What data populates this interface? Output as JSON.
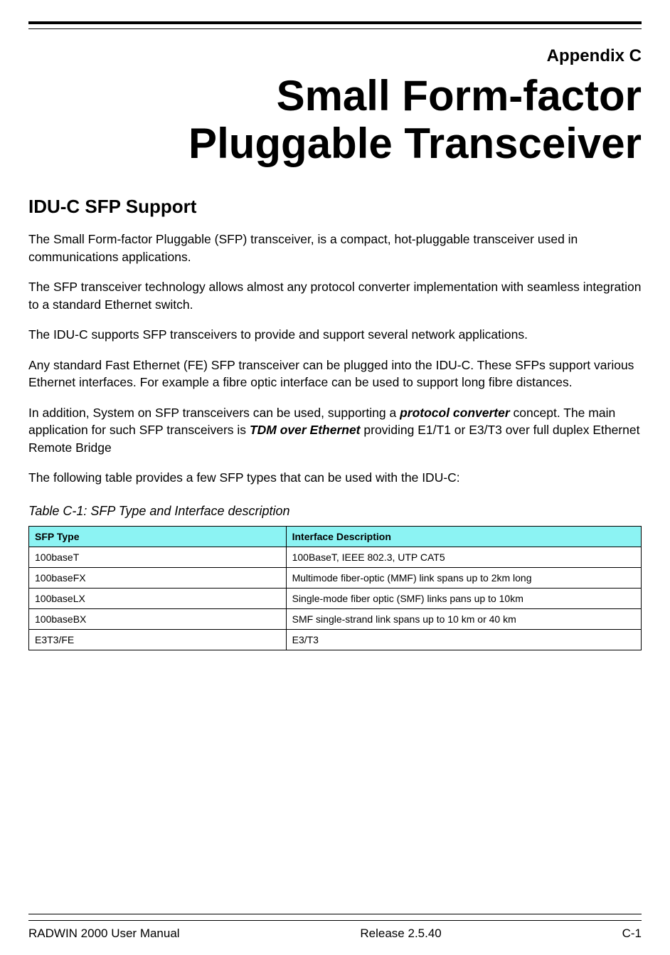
{
  "header": {
    "appendix_label": "Appendix C",
    "title_line1": "Small Form-factor",
    "title_line2": "Pluggable Transceiver"
  },
  "section": {
    "heading": "IDU-C SFP Support",
    "p1": "The Small Form-factor Pluggable (SFP) transceiver, is a compact, hot-pluggable transceiver used in communications applications.",
    "p2": "The SFP transceiver technology allows almost any protocol converter implementation with seamless integration to a standard Ethernet switch.",
    "p3": "The IDU-C supports SFP transceivers to provide and support several network applications.",
    "p4": "Any standard Fast Ethernet (FE) SFP transceiver can be plugged into the IDU-C. These SFPs support various Ethernet interfaces. For example a fibre optic interface can be used to support long fibre distances.",
    "p5_prefix": "In addition, System on SFP transceivers can be used, supporting a ",
    "p5_bold1": "protocol converter",
    "p5_mid": " concept. The main application for such SFP transceivers is ",
    "p5_bold2": "TDM over Ethernet",
    "p5_suffix": " providing E1/T1 or E3/T3 over full duplex Ethernet Remote Bridge",
    "p6": "The following table provides a few SFP types that can be used with the IDU-C:"
  },
  "table": {
    "caption": "Table C-1: SFP Type and Interface description",
    "header_bg": "#8cf3f3",
    "border_color": "#000000",
    "columns": [
      "SFP Type",
      "Interface Description"
    ],
    "rows": [
      [
        "100baseT",
        "100BaseT, IEEE 802.3, UTP CAT5"
      ],
      [
        "100baseFX",
        "Multimode fiber-optic (MMF) link spans up to 2km long"
      ],
      [
        "100baseLX",
        "Single-mode fiber optic (SMF) links pans up to 10km"
      ],
      [
        "100baseBX",
        "SMF single-strand link spans up to 10 km or 40 km"
      ],
      [
        "E3T3/FE",
        "E3/T3"
      ]
    ]
  },
  "footer": {
    "left": "RADWIN 2000 User Manual",
    "center": "Release  2.5.40",
    "right": "C-1"
  }
}
